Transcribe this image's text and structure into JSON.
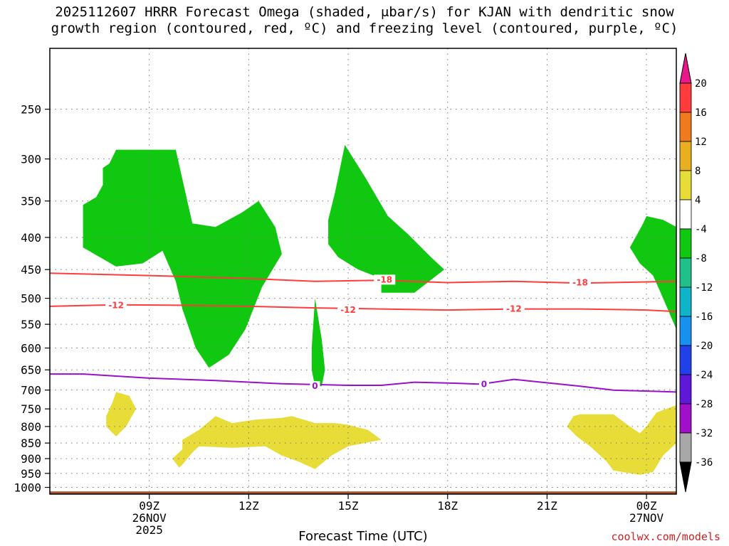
{
  "title": {
    "line1": "2025112607 HRRR Forecast Omega (shaded, μbar/s) for KJAN with dendritic snow",
    "line2": "growth region (contoured, red, ºC) and freezing level (contoured, purple, ºC)"
  },
  "footer": {
    "credit": "coolwx.com/models"
  },
  "chart_data": {
    "type": "time-height cross section",
    "title": "2025112607 HRRR Forecast Omega (shaded, μbar/s) for KJAN with dendritic snow growth region (contoured, red, ºC) and freezing level (contoured, purple, ºC)",
    "xlabel": "Forecast Time (UTC)",
    "ylabel": "",
    "x_range_hours_since_00z_26nov": [
      6.0,
      24.9
    ],
    "y_range_hpa": [
      1025,
      200
    ],
    "y_ticks": [
      250,
      300,
      350,
      400,
      450,
      500,
      550,
      600,
      650,
      700,
      750,
      800,
      850,
      900,
      950,
      1000
    ],
    "x_ticks": [
      {
        "hour": 9,
        "lines": [
          "09Z",
          "26NOV",
          "2025"
        ]
      },
      {
        "hour": 12,
        "lines": [
          "12Z"
        ]
      },
      {
        "hour": 15,
        "lines": [
          "15Z"
        ]
      },
      {
        "hour": 18,
        "lines": [
          "18Z"
        ]
      },
      {
        "hour": 21,
        "lines": [
          "21Z"
        ]
      },
      {
        "hour": 24,
        "lines": [
          "00Z",
          "27NOV"
        ]
      }
    ],
    "colorbar": {
      "labels": [
        "20",
        "16",
        "12",
        "8",
        "4",
        "-4",
        "-8",
        "-12",
        "-16",
        "-20",
        "-24",
        "-28",
        "-32",
        "-36"
      ],
      "bands": [
        {
          "range": "16 to 20",
          "color": "#ff3b3b"
        },
        {
          "range": "12 to 16",
          "color": "#f07a20"
        },
        {
          "range": "8 to 12",
          "color": "#e8b020"
        },
        {
          "range": "4 to 8",
          "color": "#e8dc38"
        },
        {
          "range": "-4 to 4",
          "color": "#ffffff"
        },
        {
          "range": "-8 to -4",
          "color": "#10c810"
        },
        {
          "range": "-12 to -8",
          "color": "#20c08a"
        },
        {
          "range": "-16 to -12",
          "color": "#10b4c8"
        },
        {
          "range": "-20 to -16",
          "color": "#1890f0"
        },
        {
          "range": "-24 to -20",
          "color": "#2040e8"
        },
        {
          "range": "-28 to -24",
          "color": "#6018d8"
        },
        {
          "range": "-32 to -28",
          "color": "#a010c8"
        },
        {
          "range": "-36 to -32",
          "color": "#a8a8a8"
        }
      ],
      "over_color": "#e8188a",
      "under_color": "#000000"
    },
    "contours": [
      {
        "name": "-18C isotherm",
        "label": "-18",
        "color": "#ff3b3b",
        "points": [
          [
            6.0,
            456
          ],
          [
            9,
            460
          ],
          [
            12,
            465
          ],
          [
            14,
            470
          ],
          [
            16,
            468
          ],
          [
            18,
            472
          ],
          [
            20,
            470
          ],
          [
            22,
            473
          ],
          [
            24.9,
            470
          ]
        ]
      },
      {
        "name": "-12C isotherm",
        "label": "-12",
        "color": "#ff3b3b",
        "points": [
          [
            6.0,
            515
          ],
          [
            8,
            512
          ],
          [
            10,
            513
          ],
          [
            12,
            515
          ],
          [
            14,
            518
          ],
          [
            16,
            520
          ],
          [
            18,
            522
          ],
          [
            20,
            520
          ],
          [
            22,
            520
          ],
          [
            24,
            522
          ],
          [
            24.9,
            525
          ]
        ]
      },
      {
        "name": "0C freezing level",
        "label": "0",
        "color": "#9a10c8",
        "points": [
          [
            6.0,
            660
          ],
          [
            7,
            660
          ],
          [
            9,
            670
          ],
          [
            11,
            676
          ],
          [
            13,
            684
          ],
          [
            15,
            688
          ],
          [
            16,
            688
          ],
          [
            17,
            680
          ],
          [
            18,
            682
          ],
          [
            19,
            685
          ],
          [
            20,
            673
          ],
          [
            22,
            690
          ],
          [
            23,
            700
          ],
          [
            24.9,
            705
          ]
        ]
      }
    ],
    "contour_labels": [
      {
        "text": "-12",
        "hour": 8.0,
        "hpa": 513,
        "color": "#ff3b3b"
      },
      {
        "text": "-12",
        "hour": 15.0,
        "hpa": 522,
        "color": "#ff3b3b"
      },
      {
        "text": "-12",
        "hour": 20.0,
        "hpa": 520,
        "color": "#ff3b3b"
      },
      {
        "text": "-18",
        "hour": 16.1,
        "hpa": 467,
        "color": "#ff3b3b"
      },
      {
        "text": "-18",
        "hour": 22.0,
        "hpa": 472,
        "color": "#ff3b3b"
      },
      {
        "text": "0",
        "hour": 14.0,
        "hpa": 690,
        "color": "#9a10c8"
      },
      {
        "text": "0",
        "hour": 19.1,
        "hpa": 685,
        "color": "#9a10c8"
      }
    ],
    "regions": [
      {
        "name": "upward-motion area 1",
        "range": "-8 to -4",
        "color": "#10c810",
        "points": [
          [
            7.0,
            355
          ],
          [
            7.4,
            345
          ],
          [
            7.6,
            330
          ],
          [
            7.6,
            310
          ],
          [
            7.8,
            305
          ],
          [
            8.0,
            290
          ],
          [
            9.0,
            290
          ],
          [
            9.8,
            290
          ],
          [
            10.3,
            380
          ],
          [
            11.0,
            385
          ],
          [
            11.8,
            365
          ],
          [
            12.3,
            350
          ],
          [
            12.8,
            385
          ],
          [
            13.0,
            425
          ],
          [
            12.4,
            480
          ],
          [
            11.9,
            560
          ],
          [
            11.4,
            615
          ],
          [
            11.0,
            635
          ],
          [
            10.8,
            645
          ],
          [
            10.4,
            600
          ],
          [
            10.0,
            520
          ],
          [
            9.8,
            470
          ],
          [
            9.4,
            420
          ],
          [
            8.8,
            440
          ],
          [
            8.0,
            445
          ],
          [
            7.0,
            415
          ]
        ]
      },
      {
        "name": "upward-motion area 2",
        "range": "-8 to -4",
        "color": "#10c810",
        "points": [
          [
            13.9,
            600
          ],
          [
            14.0,
            500
          ],
          [
            14.2,
            580
          ],
          [
            14.3,
            650
          ],
          [
            14.2,
            690
          ],
          [
            14.0,
            690
          ],
          [
            13.9,
            650
          ]
        ]
      },
      {
        "name": "upward-motion area 3",
        "range": "-8 to -4",
        "color": "#10c810",
        "points": [
          [
            14.4,
            375
          ],
          [
            14.6,
            340
          ],
          [
            14.9,
            285
          ],
          [
            15.5,
            320
          ],
          [
            16.2,
            370
          ],
          [
            16.8,
            395
          ],
          [
            17.5,
            430
          ],
          [
            17.9,
            450
          ],
          [
            17.0,
            490
          ],
          [
            16.0,
            490
          ],
          [
            16.0,
            465
          ],
          [
            15.3,
            450
          ],
          [
            14.7,
            430
          ],
          [
            14.4,
            410
          ]
        ]
      },
      {
        "name": "upward-motion area 4",
        "range": "-8 to -4",
        "color": "#10c810",
        "points": [
          [
            23.5,
            415
          ],
          [
            23.9,
            380
          ],
          [
            24.0,
            370
          ],
          [
            24.5,
            375
          ],
          [
            24.9,
            385
          ],
          [
            24.9,
            560
          ],
          [
            24.5,
            500
          ],
          [
            24.2,
            460
          ],
          [
            23.8,
            440
          ]
        ]
      },
      {
        "name": "downward-motion area 1",
        "range": "4 to 8",
        "color": "#e8dc38",
        "points": [
          [
            7.7,
            770
          ],
          [
            7.9,
            730
          ],
          [
            8.0,
            705
          ],
          [
            8.4,
            715
          ],
          [
            8.6,
            750
          ],
          [
            8.3,
            800
          ],
          [
            8.0,
            830
          ],
          [
            7.7,
            800
          ]
        ]
      },
      {
        "name": "downward-motion area 2",
        "range": "4 to 8",
        "color": "#e8dc38",
        "points": [
          [
            9.7,
            900
          ],
          [
            10.0,
            870
          ],
          [
            10.0,
            840
          ],
          [
            10.5,
            810
          ],
          [
            11.0,
            770
          ],
          [
            11.5,
            790
          ],
          [
            12.2,
            780
          ],
          [
            13.0,
            775
          ],
          [
            13.3,
            770
          ],
          [
            14.0,
            790
          ],
          [
            14.6,
            790
          ],
          [
            15.0,
            795
          ],
          [
            15.6,
            810
          ],
          [
            16.0,
            840
          ],
          [
            15.0,
            860
          ],
          [
            14.5,
            890
          ],
          [
            14.0,
            935
          ],
          [
            13.5,
            910
          ],
          [
            13.0,
            890
          ],
          [
            12.5,
            860
          ],
          [
            11.5,
            865
          ],
          [
            10.5,
            860
          ],
          [
            10.3,
            880
          ],
          [
            10.0,
            920
          ],
          [
            9.9,
            930
          ]
        ]
      },
      {
        "name": "downward-motion area 3",
        "range": "4 to 8",
        "color": "#e8dc38",
        "points": [
          [
            21.6,
            800
          ],
          [
            21.8,
            770
          ],
          [
            22.0,
            765
          ],
          [
            23.0,
            765
          ],
          [
            23.5,
            800
          ],
          [
            23.8,
            820
          ],
          [
            24.0,
            800
          ],
          [
            24.3,
            760
          ],
          [
            24.9,
            740
          ],
          [
            24.9,
            850
          ],
          [
            24.5,
            890
          ],
          [
            24.2,
            945
          ],
          [
            23.8,
            955
          ],
          [
            23.0,
            940
          ],
          [
            22.8,
            910
          ],
          [
            22.3,
            860
          ],
          [
            21.9,
            830
          ]
        ]
      },
      {
        "name": "terrain",
        "range": "",
        "color": "#a5522d",
        "points": [
          [
            6.0,
            1015
          ],
          [
            24.9,
            1015
          ],
          [
            24.9,
            1050
          ],
          [
            6.0,
            1050
          ]
        ]
      }
    ]
  }
}
